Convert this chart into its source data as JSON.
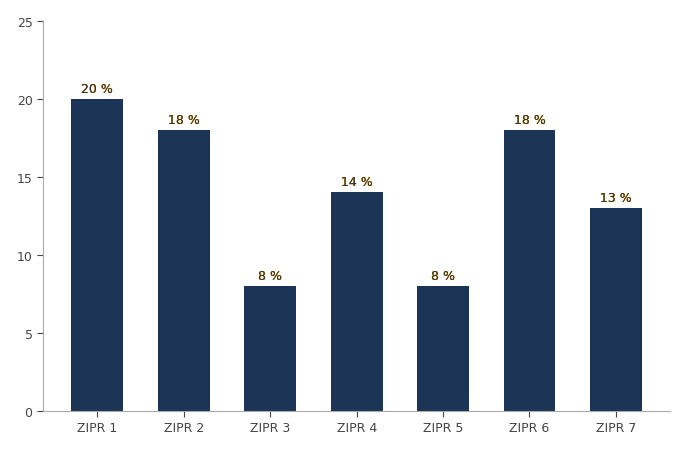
{
  "categories": [
    "ZIPR 1",
    "ZIPR 2",
    "ZIPR 3",
    "ZIPR 4",
    "ZIPR 5",
    "ZIPR 6",
    "ZIPR 7"
  ],
  "values": [
    20,
    18,
    8,
    14,
    8,
    18,
    13
  ],
  "labels": [
    "20 %",
    "18 %",
    "8 %",
    "14 %",
    "8 %",
    "18 %",
    "13 %"
  ],
  "bar_color": "#1c3557",
  "label_color_main": "#333333",
  "label_color_outline": "#cc8800",
  "ylim": [
    0,
    25
  ],
  "yticks": [
    0,
    5,
    10,
    15,
    20,
    25
  ],
  "background_color": "#ffffff",
  "bar_width": 0.6,
  "label_fontsize": 9,
  "tick_fontsize": 9,
  "axis_color": "#888888",
  "spine_color": "#aaaaaa"
}
